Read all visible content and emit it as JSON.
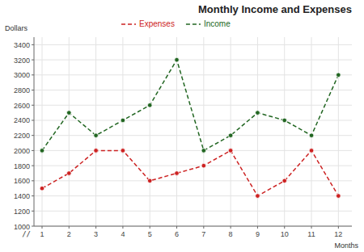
{
  "chart_data": {
    "type": "line",
    "title": "Monthly Income and Expenses",
    "x_label": "Months",
    "y_label": "Dollars",
    "x": [
      1,
      2,
      3,
      4,
      5,
      6,
      7,
      8,
      9,
      10,
      11,
      12
    ],
    "series": [
      {
        "name": "Expenses",
        "color": "#cc2222",
        "marker": "circle",
        "line_style": "dashed",
        "values": [
          1500,
          1700,
          2000,
          2000,
          1600,
          1700,
          1800,
          2000,
          1400,
          1600,
          2000,
          1400
        ]
      },
      {
        "name": "Income",
        "color": "#226622",
        "marker": "circle",
        "line_style": "dashed",
        "values": [
          2000,
          2500,
          2200,
          2400,
          2600,
          3200,
          2000,
          2200,
          2500,
          2400,
          2200,
          3000
        ]
      }
    ],
    "xlim": [
      0.7,
      12.5
    ],
    "xticks": [
      1,
      2,
      3,
      4,
      5,
      6,
      7,
      8,
      9,
      10,
      11,
      12
    ],
    "ylim": [
      1000,
      3500
    ],
    "yticks": [
      1000,
      1200,
      1400,
      1600,
      1800,
      2000,
      2200,
      2400,
      2600,
      2800,
      3000,
      3200,
      3400
    ],
    "grid": true,
    "legend": "top",
    "annotations": [
      "//"
    ]
  }
}
